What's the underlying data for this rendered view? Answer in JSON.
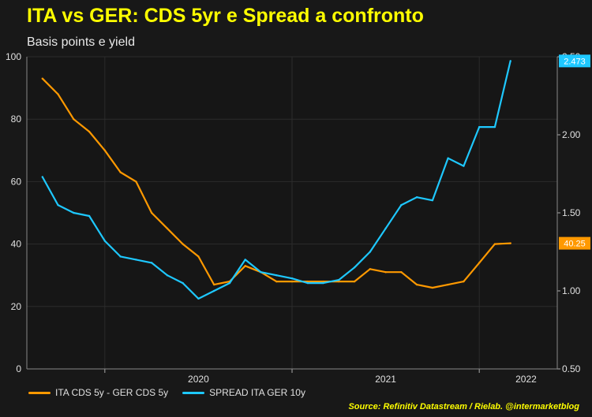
{
  "header": {
    "title": "ITA vs GER: CDS 5yr e Spread a confronto",
    "subtitle": "Basis points e yield"
  },
  "legend": {
    "cds_label": "ITA CDS 5y - GER CDS 5y",
    "spread_label": "SPREAD ITA GER 10y"
  },
  "source": "Source: Refinitiv Datastream / Rielab. @intermarketblog",
  "colors": {
    "cds": "#ff9900",
    "spread": "#1ec8ff",
    "background": "#181818",
    "title": "#ffff00",
    "grid": "#2c2c2c"
  },
  "chart_data": {
    "type": "line",
    "x_ticks": [
      "2020",
      "2021",
      "2022"
    ],
    "xlim": [
      "2019-08",
      "2022-06"
    ],
    "left_axis": {
      "ylim": [
        0,
        100
      ],
      "ticks": [
        "0",
        "20",
        "40",
        "60",
        "80",
        "100"
      ]
    },
    "right_axis": {
      "ylim": [
        0.5,
        2.5
      ],
      "ticks": [
        "0.50",
        "1.00",
        "1.50",
        "2.00",
        "2.50"
      ]
    },
    "grid": true,
    "legend_position": "bottom-left",
    "last_value_labels": {
      "cds": "40.25",
      "spread": "2.473"
    },
    "series": [
      {
        "name": "ITA CDS 5y - GER CDS 5y",
        "axis": "left",
        "color": "#ff9900",
        "x": [
          "2019-09",
          "2019-10",
          "2019-11",
          "2019-12",
          "2020-01",
          "2020-02",
          "2020-03",
          "2020-04",
          "2020-05",
          "2020-06",
          "2020-07",
          "2020-08",
          "2020-09",
          "2020-10",
          "2020-11",
          "2020-12",
          "2021-01",
          "2021-02",
          "2021-03",
          "2021-04",
          "2021-05",
          "2021-06",
          "2021-07",
          "2021-08",
          "2021-09",
          "2021-10",
          "2021-11",
          "2021-12",
          "2022-01",
          "2022-02",
          "2022-03"
        ],
        "values": [
          93,
          88,
          80,
          76,
          70,
          63,
          60,
          50,
          45,
          40,
          36,
          27,
          28,
          33,
          31,
          28,
          28,
          28,
          28,
          28,
          28,
          32,
          31,
          31,
          27,
          26,
          27,
          28,
          34,
          40,
          40.25
        ]
      },
      {
        "name": "SPREAD ITA GER 10y",
        "axis": "right",
        "color": "#1ec8ff",
        "x": [
          "2019-09",
          "2019-10",
          "2019-11",
          "2019-12",
          "2020-01",
          "2020-02",
          "2020-03",
          "2020-04",
          "2020-05",
          "2020-06",
          "2020-07",
          "2020-08",
          "2020-09",
          "2020-10",
          "2020-11",
          "2020-12",
          "2021-01",
          "2021-02",
          "2021-03",
          "2021-04",
          "2021-05",
          "2021-06",
          "2021-07",
          "2021-08",
          "2021-09",
          "2021-10",
          "2021-11",
          "2021-12",
          "2022-01",
          "2022-02",
          "2022-03"
        ],
        "values": [
          1.73,
          1.55,
          1.5,
          1.48,
          1.32,
          1.22,
          1.2,
          1.18,
          1.1,
          1.05,
          0.95,
          1.0,
          1.05,
          1.2,
          1.12,
          1.1,
          1.08,
          1.05,
          1.05,
          1.07,
          1.15,
          1.25,
          1.4,
          1.55,
          1.6,
          1.58,
          1.85,
          1.8,
          2.05,
          2.05,
          2.473
        ]
      }
    ]
  }
}
